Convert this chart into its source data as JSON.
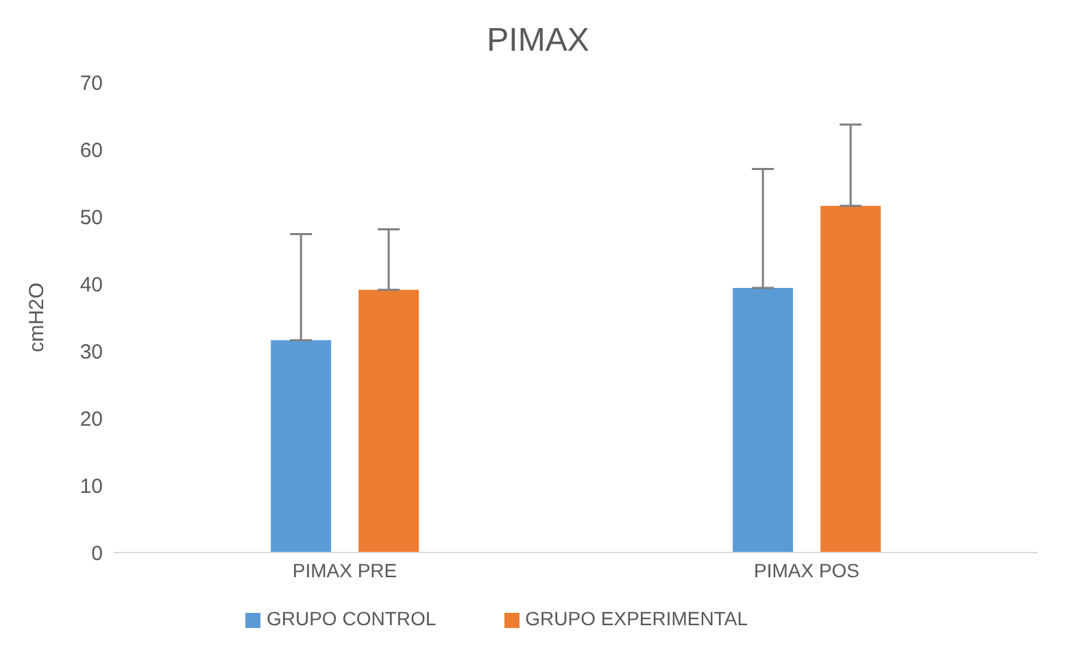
{
  "chart_data": {
    "type": "bar",
    "title": "PIMAX",
    "ylabel": "cmH2O",
    "categories": [
      "PIMAX PRE",
      "PIMAX POS"
    ],
    "series": [
      {
        "name": "GRUPO CONTROL",
        "color": "#5b9bd5",
        "values": [
          31.6,
          39.4
        ],
        "errors": [
          [
            31.6,
            47.4
          ],
          [
            39.4,
            57.1
          ]
        ]
      },
      {
        "name": "GRUPO EXPERIMENTAL",
        "color": "#ed7d31",
        "values": [
          39.1,
          51.6
        ],
        "errors": [
          [
            39.1,
            48.1
          ],
          [
            51.6,
            63.7
          ]
        ]
      }
    ],
    "ylim": [
      0,
      70
    ],
    "yticks": [
      0,
      10,
      20,
      30,
      40,
      50,
      60,
      70
    ],
    "grid": false,
    "legend": "bottom"
  }
}
